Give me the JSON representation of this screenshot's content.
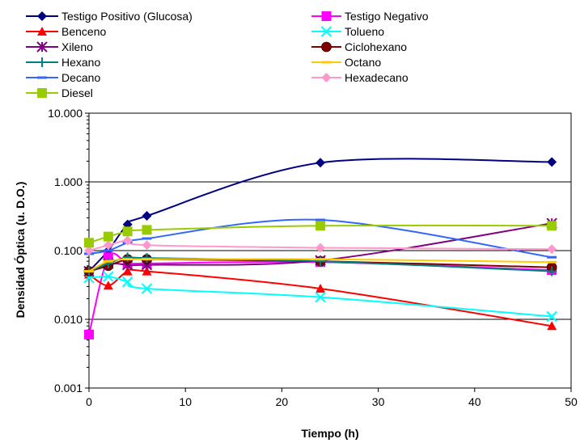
{
  "chart_data": {
    "type": "line",
    "title": "",
    "xlabel": "Tiempo (h)",
    "ylabel": "Densidad Óptica (u. D.O.)",
    "xlim": [
      0,
      50
    ],
    "ylim": [
      0.001,
      10
    ],
    "y_scale": "log",
    "x_ticks": [
      0,
      10,
      20,
      30,
      40,
      50
    ],
    "x_tick_labels": [
      "0",
      "10",
      "20",
      "30",
      "40",
      "50"
    ],
    "y_ticks": [
      0.001,
      0.01,
      0.1,
      1,
      10
    ],
    "y_tick_labels": [
      "0.001",
      "0.010",
      "0.100",
      "1.000",
      "10.000"
    ],
    "grid": "horizontal major lines",
    "legend_position": "top",
    "x": [
      0,
      2,
      4,
      6,
      24,
      48
    ],
    "series": [
      {
        "name": "Testigo Positivo (Glucosa)",
        "color": "#000080",
        "marker": "diamond",
        "values": [
          0.05,
          0.1,
          0.24,
          0.32,
          1.9,
          1.95
        ]
      },
      {
        "name": "Testigo Negativo",
        "color": "#FF00FF",
        "marker": "square",
        "values": [
          0.006,
          0.08,
          0.065,
          0.065,
          0.068,
          0.052
        ]
      },
      {
        "name": "Benceno",
        "color": "#FF0000",
        "marker": "triangle",
        "values": [
          0.045,
          0.031,
          0.05,
          0.05,
          0.028,
          0.008
        ]
      },
      {
        "name": "Tolueno",
        "color": "#00FFFF",
        "marker": "x",
        "values": [
          0.04,
          0.042,
          0.035,
          0.028,
          0.021,
          0.011
        ]
      },
      {
        "name": "Xileno",
        "color": "#800080",
        "marker": "star",
        "values": [
          0.05,
          0.065,
          0.062,
          0.062,
          0.072,
          0.25
        ]
      },
      {
        "name": "Ciclohexano",
        "color": "#800000",
        "marker": "circle",
        "values": [
          0.05,
          0.06,
          0.075,
          0.075,
          0.07,
          0.057
        ]
      },
      {
        "name": "Hexano",
        "color": "#008080",
        "marker": "plus",
        "values": [
          0.05,
          0.065,
          0.08,
          0.078,
          0.07,
          0.05
        ]
      },
      {
        "name": "Octano",
        "color": "#FFCC00",
        "marker": "dash",
        "values": [
          0.05,
          0.07,
          0.075,
          0.075,
          0.075,
          0.068
        ]
      },
      {
        "name": "Decano",
        "color": "#3366FF",
        "marker": "dash",
        "values": [
          0.09,
          0.1,
          0.13,
          0.15,
          0.28,
          0.08
        ]
      },
      {
        "name": "Hexadecano",
        "color": "#FF99CC",
        "marker": "diamond",
        "values": [
          0.1,
          0.12,
          0.14,
          0.12,
          0.11,
          0.105
        ]
      },
      {
        "name": "Diesel",
        "color": "#99CC00",
        "marker": "square",
        "values": [
          0.13,
          0.16,
          0.19,
          0.2,
          0.23,
          0.23
        ]
      }
    ]
  }
}
